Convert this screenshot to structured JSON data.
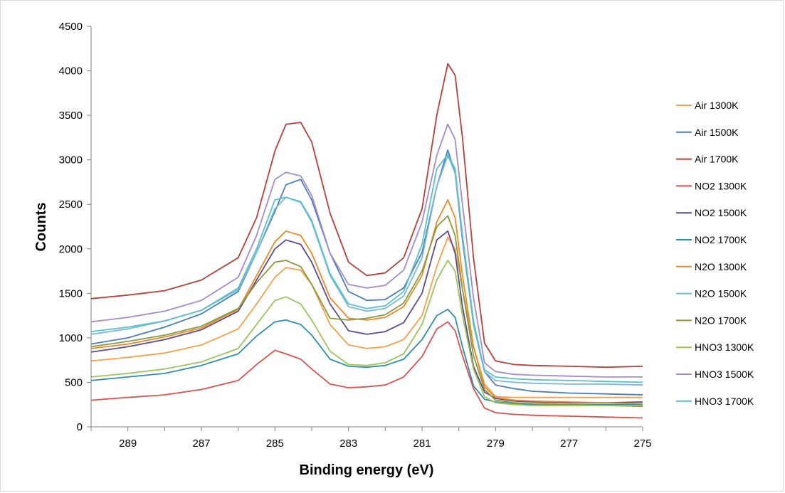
{
  "chart_data": {
    "type": "line",
    "title": "",
    "xlabel": "Binding energy (eV)",
    "ylabel": "Counts",
    "xlim": [
      290,
      275
    ],
    "ylim": [
      0,
      4500
    ],
    "x_reversed": true,
    "x_ticks": [
      289,
      287,
      285,
      283,
      281,
      279,
      277,
      275
    ],
    "y_ticks": [
      0,
      500,
      1000,
      1500,
      2000,
      2500,
      3000,
      3500,
      4000,
      4500
    ],
    "grid": false,
    "legend": "right",
    "x": [
      290,
      289,
      288,
      287,
      286,
      285.5,
      285,
      284.7,
      284.3,
      284,
      283.5,
      283,
      282.5,
      282,
      281.5,
      281,
      280.6,
      280.3,
      280.1,
      279.9,
      279.6,
      279.3,
      279,
      278.5,
      278,
      277,
      276,
      275
    ],
    "series": [
      {
        "name": "Air 1300K",
        "color": "#f5a04a",
        "values": [
          740,
          780,
          830,
          920,
          1100,
          1380,
          1680,
          1790,
          1760,
          1600,
          1150,
          920,
          880,
          900,
          980,
          1250,
          1800,
          2130,
          2000,
          1550,
          900,
          480,
          340,
          330,
          330,
          330,
          330,
          330
        ]
      },
      {
        "name": "Air 1500K",
        "color": "#4a7eb8",
        "values": [
          930,
          1000,
          1120,
          1270,
          1520,
          1960,
          2420,
          2720,
          2780,
          2550,
          1950,
          1520,
          1420,
          1430,
          1560,
          1960,
          2700,
          3110,
          2850,
          2100,
          1150,
          620,
          470,
          430,
          400,
          380,
          370,
          360
        ]
      },
      {
        "name": "Air 1700K",
        "color": "#b5403b",
        "values": [
          1440,
          1480,
          1530,
          1650,
          1900,
          2350,
          3100,
          3400,
          3420,
          3200,
          2400,
          1850,
          1700,
          1730,
          1900,
          2450,
          3500,
          4080,
          3950,
          3250,
          1900,
          940,
          740,
          700,
          690,
          680,
          670,
          680
        ]
      },
      {
        "name": "NO2 1300K",
        "color": "#d9534f",
        "values": [
          300,
          330,
          360,
          420,
          520,
          700,
          860,
          820,
          760,
          650,
          480,
          440,
          450,
          470,
          560,
          790,
          1100,
          1180,
          1080,
          800,
          430,
          210,
          160,
          140,
          130,
          120,
          110,
          100
        ]
      },
      {
        "name": "NO2 1500K",
        "color": "#5e4a8c",
        "values": [
          840,
          900,
          980,
          1090,
          1300,
          1650,
          2000,
          2100,
          2050,
          1850,
          1380,
          1080,
          1040,
          1070,
          1170,
          1500,
          2100,
          2200,
          1950,
          1350,
          680,
          390,
          320,
          290,
          280,
          270,
          270,
          280
        ]
      },
      {
        "name": "NO2 1700K",
        "color": "#2f8fa8",
        "values": [
          520,
          560,
          600,
          690,
          820,
          1020,
          1180,
          1200,
          1150,
          1030,
          760,
          680,
          670,
          690,
          760,
          980,
          1250,
          1320,
          1230,
          900,
          460,
          310,
          280,
          260,
          250,
          250,
          250,
          250
        ]
      },
      {
        "name": "N2O 1300K",
        "color": "#e8892b",
        "values": [
          880,
          930,
          1010,
          1110,
          1320,
          1700,
          2080,
          2200,
          2150,
          1950,
          1450,
          1220,
          1200,
          1230,
          1350,
          1700,
          2300,
          2550,
          2350,
          1700,
          900,
          450,
          330,
          300,
          290,
          280,
          270,
          260
        ]
      },
      {
        "name": "N2O 1500K",
        "color": "#7bb8d8",
        "values": [
          1040,
          1100,
          1190,
          1310,
          1540,
          1960,
          2450,
          2580,
          2520,
          2300,
          1700,
          1350,
          1300,
          1330,
          1470,
          1900,
          2700,
          3050,
          2850,
          2150,
          1200,
          620,
          520,
          500,
          490,
          480,
          480,
          470
        ]
      },
      {
        "name": "N2O 1700K",
        "color": "#879a3f",
        "values": [
          900,
          960,
          1030,
          1130,
          1330,
          1620,
          1850,
          1870,
          1800,
          1600,
          1220,
          1200,
          1220,
          1260,
          1390,
          1750,
          2250,
          2370,
          2150,
          1550,
          800,
          420,
          300,
          270,
          260,
          250,
          240,
          230
        ]
      },
      {
        "name": "HNO3 1300K",
        "color": "#9cc45c",
        "values": [
          560,
          600,
          650,
          730,
          880,
          1150,
          1420,
          1460,
          1380,
          1200,
          850,
          700,
          690,
          720,
          820,
          1150,
          1650,
          1870,
          1750,
          1250,
          650,
          340,
          270,
          250,
          240,
          240,
          240,
          240
        ]
      },
      {
        "name": "HNO3 1500K",
        "color": "#a48cc8",
        "values": [
          1180,
          1230,
          1300,
          1420,
          1680,
          2150,
          2780,
          2860,
          2820,
          2600,
          1950,
          1600,
          1560,
          1590,
          1760,
          2300,
          3050,
          3400,
          3230,
          2500,
          1450,
          720,
          620,
          590,
          580,
          570,
          560,
          560
        ]
      },
      {
        "name": "HNO3 1700K",
        "color": "#5bc0c8",
        "values": [
          1070,
          1120,
          1190,
          1310,
          1560,
          2000,
          2550,
          2580,
          2530,
          2320,
          1720,
          1380,
          1330,
          1360,
          1520,
          2050,
          2900,
          3060,
          2900,
          2150,
          1150,
          640,
          560,
          540,
          530,
          520,
          510,
          500
        ]
      }
    ]
  }
}
